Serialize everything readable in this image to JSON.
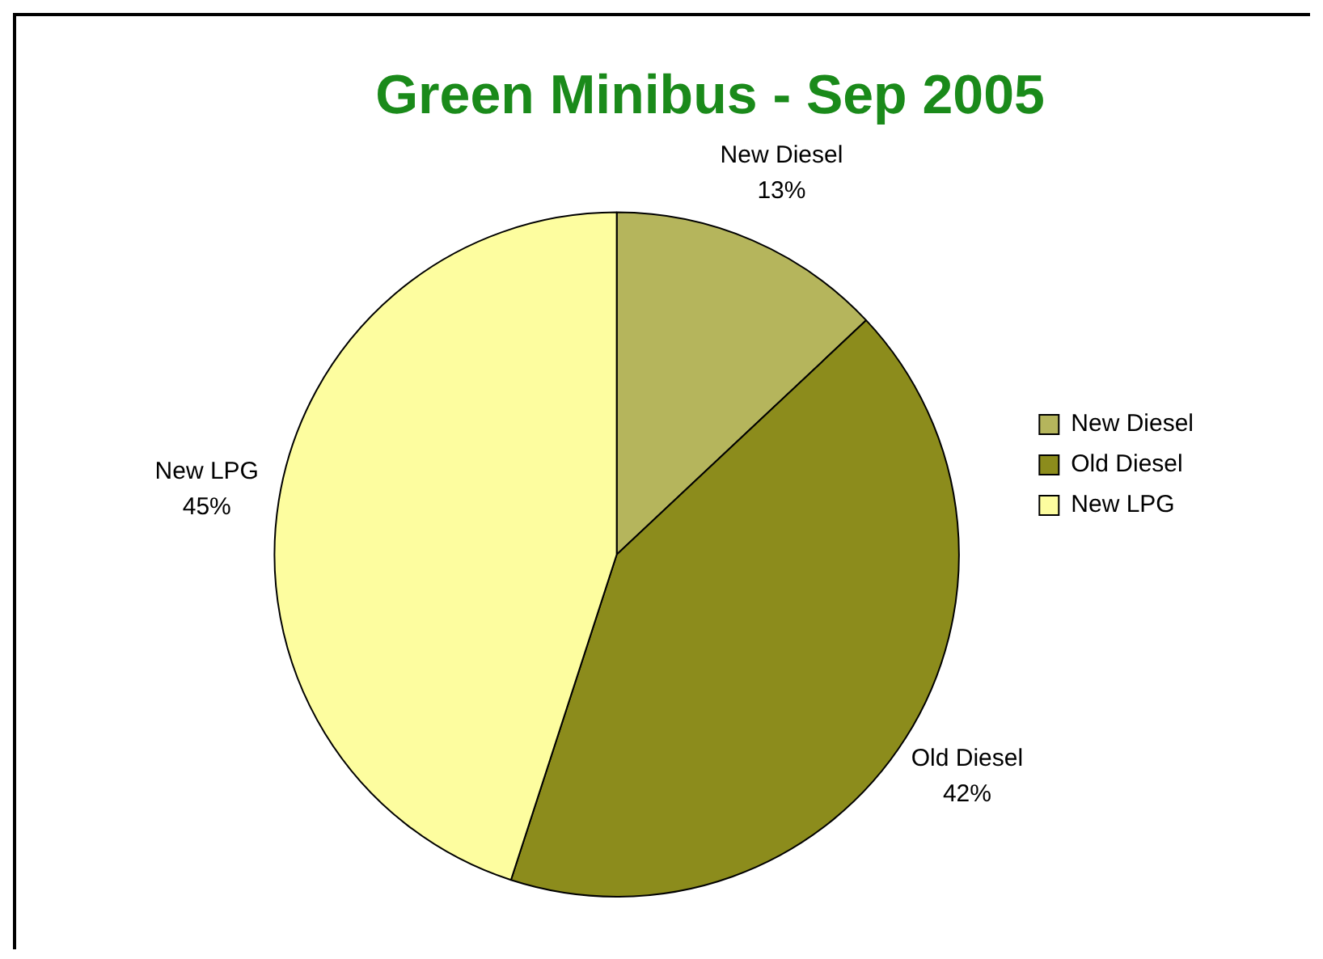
{
  "chart_data": {
    "type": "pie",
    "title": "Green Minibus - Sep 2005",
    "categories": [
      "New Diesel",
      "Old Diesel",
      "New LPG"
    ],
    "values": [
      13,
      42,
      45
    ],
    "colors": [
      "#b5b55c",
      "#8c8c1c",
      "#fdfd9f"
    ],
    "value_labels": [
      "13%",
      "42%",
      "45%"
    ],
    "legend": "right"
  }
}
